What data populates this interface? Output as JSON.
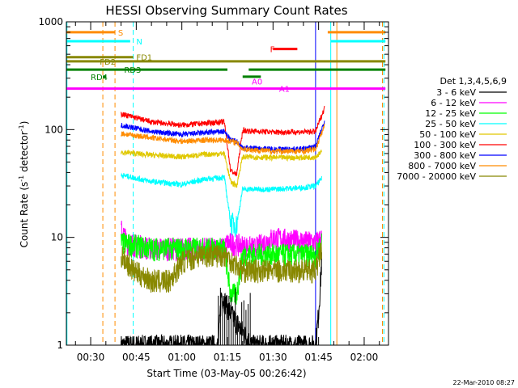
{
  "chart_data": {
    "type": "line",
    "title": "HESSI Observing Summary Count Rates",
    "xlabel": "Start Time (03-May-05 00:26:42)",
    "ylabel_main": "Count Rate (s",
    "ylabel_sup1": "-1",
    "ylabel_mid": " detector",
    "ylabel_sup2": "-1",
    "ylabel_end": ")",
    "y_scale": "log",
    "ylim": [
      1,
      1000
    ],
    "xlim_minutes": [
      22,
      128
    ],
    "x_ticks": [
      {
        "label": "00:30",
        "minute": 30
      },
      {
        "label": "00:45",
        "minute": 45
      },
      {
        "label": "01:00",
        "minute": 60
      },
      {
        "label": "01:15",
        "minute": 75
      },
      {
        "label": "01:30",
        "minute": 90
      },
      {
        "label": "01:45",
        "minute": 105
      },
      {
        "label": "02:00",
        "minute": 120
      }
    ],
    "y_ticks": [
      {
        "label": "1",
        "value": 1
      },
      {
        "label": "10",
        "value": 10
      },
      {
        "label": "100",
        "value": 100
      },
      {
        "label": "1000",
        "value": 1000
      }
    ],
    "legend_title": "Det 1,3,4,5,6,9",
    "legend_placement": "right",
    "gaps_minutes": [
      [
        75,
        78
      ],
      [
        107,
        128
      ]
    ],
    "series": [
      {
        "name": "3 - 6 keV",
        "color": "#000000",
        "points": [
          [
            40,
            1
          ],
          [
            72,
            1
          ],
          [
            73,
            3
          ],
          [
            76,
            2
          ],
          [
            83,
            1
          ],
          [
            104,
            1
          ],
          [
            105,
            2
          ],
          [
            106,
            6
          ]
        ]
      },
      {
        "name": "6 - 12 keV",
        "color": "#ff00ff",
        "points": [
          [
            40,
            12
          ],
          [
            42,
            9
          ],
          [
            50,
            8
          ],
          [
            66,
            8
          ],
          [
            74,
            8
          ],
          [
            75,
            9
          ],
          [
            84,
            8
          ],
          [
            90,
            10
          ],
          [
            104,
            9
          ],
          [
            106,
            10
          ]
        ]
      },
      {
        "name": "12 - 25 keV",
        "color": "#00ff00",
        "points": [
          [
            40,
            9
          ],
          [
            50,
            8
          ],
          [
            66,
            8
          ],
          [
            74,
            8
          ],
          [
            76,
            3
          ],
          [
            78,
            3
          ],
          [
            80,
            7
          ],
          [
            90,
            7
          ],
          [
            104,
            7
          ],
          [
            106,
            9
          ]
        ]
      },
      {
        "name": "25 - 50 keV",
        "color": "#00ffff",
        "points": [
          [
            40,
            38
          ],
          [
            50,
            33
          ],
          [
            60,
            31
          ],
          [
            68,
            35
          ],
          [
            74,
            36
          ],
          [
            76,
            14
          ],
          [
            78,
            13
          ],
          [
            80,
            28
          ],
          [
            90,
            28
          ],
          [
            100,
            29
          ],
          [
            104,
            30
          ],
          [
            106,
            35
          ]
        ]
      },
      {
        "name": "50 - 100 keV",
        "color": "#e0c800",
        "points": [
          [
            40,
            62
          ],
          [
            50,
            58
          ],
          [
            60,
            56
          ],
          [
            68,
            59
          ],
          [
            74,
            60
          ],
          [
            76,
            33
          ],
          [
            78,
            30
          ],
          [
            80,
            56
          ],
          [
            90,
            55
          ],
          [
            100,
            55
          ],
          [
            104,
            56
          ],
          [
            106,
            62
          ]
        ]
      },
      {
        "name": "100 - 300 keV",
        "color": "#ff0000",
        "points": [
          [
            40,
            140
          ],
          [
            50,
            118
          ],
          [
            60,
            110
          ],
          [
            68,
            115
          ],
          [
            74,
            118
          ],
          [
            76,
            42
          ],
          [
            78,
            38
          ],
          [
            80,
            98
          ],
          [
            90,
            95
          ],
          [
            100,
            95
          ],
          [
            104,
            96
          ],
          [
            107,
            160
          ]
        ]
      },
      {
        "name": "300 - 800 keV",
        "color": "#0000ff",
        "points": [
          [
            40,
            110
          ],
          [
            50,
            96
          ],
          [
            60,
            90
          ],
          [
            68,
            94
          ],
          [
            74,
            96
          ],
          [
            76,
            80
          ],
          [
            78,
            78
          ],
          [
            80,
            68
          ],
          [
            90,
            66
          ],
          [
            100,
            66
          ],
          [
            104,
            70
          ],
          [
            107,
            120
          ]
        ]
      },
      {
        "name": "800 - 7000 keV",
        "color": "#ff8c00",
        "points": [
          [
            40,
            92
          ],
          [
            50,
            84
          ],
          [
            60,
            78
          ],
          [
            68,
            80
          ],
          [
            74,
            80
          ],
          [
            76,
            78
          ],
          [
            78,
            76
          ],
          [
            80,
            66
          ],
          [
            90,
            63
          ],
          [
            100,
            63
          ],
          [
            104,
            66
          ],
          [
            107,
            110
          ]
        ]
      },
      {
        "name": "7000 - 20000 keV",
        "color": "#888800",
        "points": [
          [
            40,
            7
          ],
          [
            44,
            5
          ],
          [
            50,
            4
          ],
          [
            56,
            4
          ],
          [
            60,
            6
          ],
          [
            66,
            7
          ],
          [
            74,
            7
          ],
          [
            80,
            5
          ],
          [
            90,
            5
          ],
          [
            104,
            5
          ],
          [
            106,
            8
          ]
        ]
      }
    ],
    "flags": [
      {
        "label": "S",
        "color": "#ff8c00",
        "value": 800,
        "segments": [
          [
            22,
            38
          ],
          [
            108,
            127
          ]
        ],
        "label_minute": 39
      },
      {
        "label": "N",
        "color": "#00ffff",
        "value": 660,
        "segments": [
          [
            22,
            43
          ],
          [
            109,
            127
          ]
        ],
        "label_minute": 45
      },
      {
        "label": "FD1",
        "color": "#888800",
        "value": 470,
        "segments": [
          [
            22,
            44
          ]
        ],
        "label_minute": 45
      },
      {
        "label": "FD2",
        "color": "#888800",
        "value": 430,
        "segments": [
          [
            22,
            127
          ]
        ],
        "label_minute": 33
      },
      {
        "label": "RD3",
        "color": "#008000",
        "value": 360,
        "segments": [
          [
            22,
            75
          ],
          [
            82,
            127
          ]
        ],
        "label_minute": 41
      },
      {
        "label": "RD4",
        "color": "#008000",
        "value": 310,
        "segments": [
          [
            34,
            35
          ],
          [
            80,
            86
          ]
        ],
        "label_minute": 30
      },
      {
        "label": "F",
        "color": "#ff0000",
        "value": 560,
        "segments": [
          [
            90,
            98
          ]
        ],
        "label_minute": 89
      },
      {
        "label": "A0",
        "color": "#ff00ff",
        "value": 280,
        "segments": [],
        "label_minute": 83
      },
      {
        "label": "A1",
        "color": "#ff00ff",
        "value": 240,
        "segments": [
          [
            22,
            127
          ]
        ],
        "label_minute": 92
      }
    ],
    "vlines": [
      {
        "minute": 34,
        "color": "#ff8c00",
        "dash": true
      },
      {
        "minute": 38,
        "color": "#ff8c00",
        "dash": true
      },
      {
        "minute": 44,
        "color": "#00ffff",
        "dash": true
      },
      {
        "minute": 104,
        "color": "#0000ff",
        "dash": false
      },
      {
        "minute": 109,
        "color": "#00ffff",
        "dash": false
      },
      {
        "minute": 111,
        "color": "#ff8c00",
        "dash": false
      },
      {
        "minute": 126,
        "color": "#ff8c00",
        "dash": true
      },
      {
        "minute": 126.5,
        "color": "#00ffff",
        "dash": true
      },
      {
        "minute": 22.2,
        "color": "#00ffff",
        "dash": false
      }
    ],
    "footer": "22-Mar-2010 08:27"
  }
}
